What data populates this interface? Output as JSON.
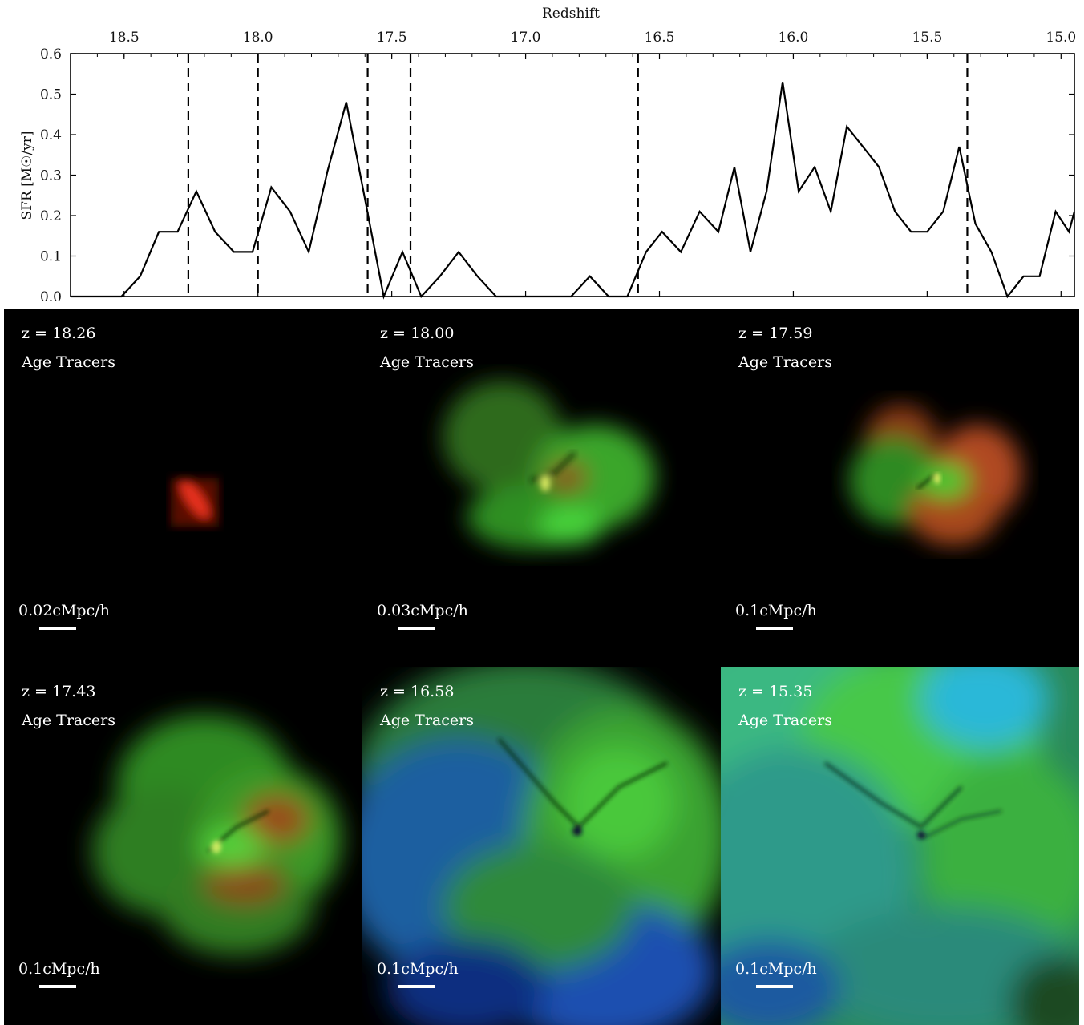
{
  "chart_data": {
    "type": "line",
    "title": "",
    "xlabel": "Redshift",
    "ylabel": "SFR [M☉/yr]",
    "xlim": [
      18.7,
      14.95
    ],
    "ylim": [
      0.0,
      0.6
    ],
    "x_ticks": [
      18.5,
      18.0,
      17.5,
      17.0,
      16.5,
      16.0,
      15.5,
      15.0
    ],
    "x_tick_labels": [
      "18.5",
      "18.0",
      "17.5",
      "17.0",
      "16.5",
      "16.0",
      "15.5",
      "15.0"
    ],
    "y_ticks": [
      0.0,
      0.1,
      0.2,
      0.3,
      0.4,
      0.5,
      0.6
    ],
    "y_tick_labels": [
      "0.0",
      "0.1",
      "0.2",
      "0.3",
      "0.4",
      "0.5",
      "0.6"
    ],
    "grid": false,
    "vlines": [
      18.26,
      18.0,
      17.59,
      17.43,
      16.58,
      15.35
    ],
    "series": [
      {
        "x": [
          18.7,
          18.51,
          18.44,
          18.37,
          18.3,
          18.23,
          18.16,
          18.09,
          18.02,
          17.95,
          17.88,
          17.81,
          17.74,
          17.67,
          17.6,
          17.53,
          17.46,
          17.39,
          17.32,
          17.25,
          17.18,
          17.11,
          17.04,
          16.97,
          16.9,
          16.83,
          16.76,
          16.69,
          16.62,
          16.55,
          16.49,
          16.42,
          16.35,
          16.28,
          16.22,
          16.16,
          16.1,
          16.04,
          15.98,
          15.92,
          15.86,
          15.8,
          15.74,
          15.68,
          15.62,
          15.56,
          15.5,
          15.44,
          15.38,
          15.32,
          15.26,
          15.2,
          15.14,
          15.08,
          15.02,
          14.97,
          14.95
        ],
        "y": [
          0.0,
          0.0,
          0.05,
          0.16,
          0.16,
          0.26,
          0.16,
          0.11,
          0.11,
          0.27,
          0.21,
          0.11,
          0.31,
          0.48,
          0.24,
          0.0,
          0.11,
          0.0,
          0.05,
          0.11,
          0.05,
          0.0,
          0.0,
          0.0,
          0.0,
          0.0,
          0.05,
          0.0,
          0.0,
          0.11,
          0.16,
          0.11,
          0.21,
          0.16,
          0.32,
          0.11,
          0.26,
          0.53,
          0.26,
          0.32,
          0.21,
          0.42,
          0.37,
          0.32,
          0.21,
          0.16,
          0.16,
          0.21,
          0.37,
          0.18,
          0.11,
          0.0,
          0.05,
          0.05,
          0.21,
          0.16,
          0.21
        ]
      }
    ]
  },
  "panels": [
    {
      "z_label": "z = 18.26",
      "tracer": "Age Tracers",
      "scale": "0.02cMpc/h"
    },
    {
      "z_label": "z = 18.00",
      "tracer": "Age Tracers",
      "scale": "0.03cMpc/h"
    },
    {
      "z_label": "z = 17.59",
      "tracer": "Age Tracers",
      "scale": "0.1cMpc/h"
    },
    {
      "z_label": "z = 17.43",
      "tracer": "Age Tracers",
      "scale": "0.1cMpc/h"
    },
    {
      "z_label": "z = 16.58",
      "tracer": "Age Tracers",
      "scale": "0.1cMpc/h"
    },
    {
      "z_label": "z = 15.35",
      "tracer": "Age Tracers",
      "scale": "0.1cMpc/h"
    }
  ],
  "colors": {
    "line": "#000000",
    "old_stars": "#e0301e",
    "mid_age": "#3ee03a",
    "young": "#1e4fd8",
    "panel_bg": "#000000"
  }
}
